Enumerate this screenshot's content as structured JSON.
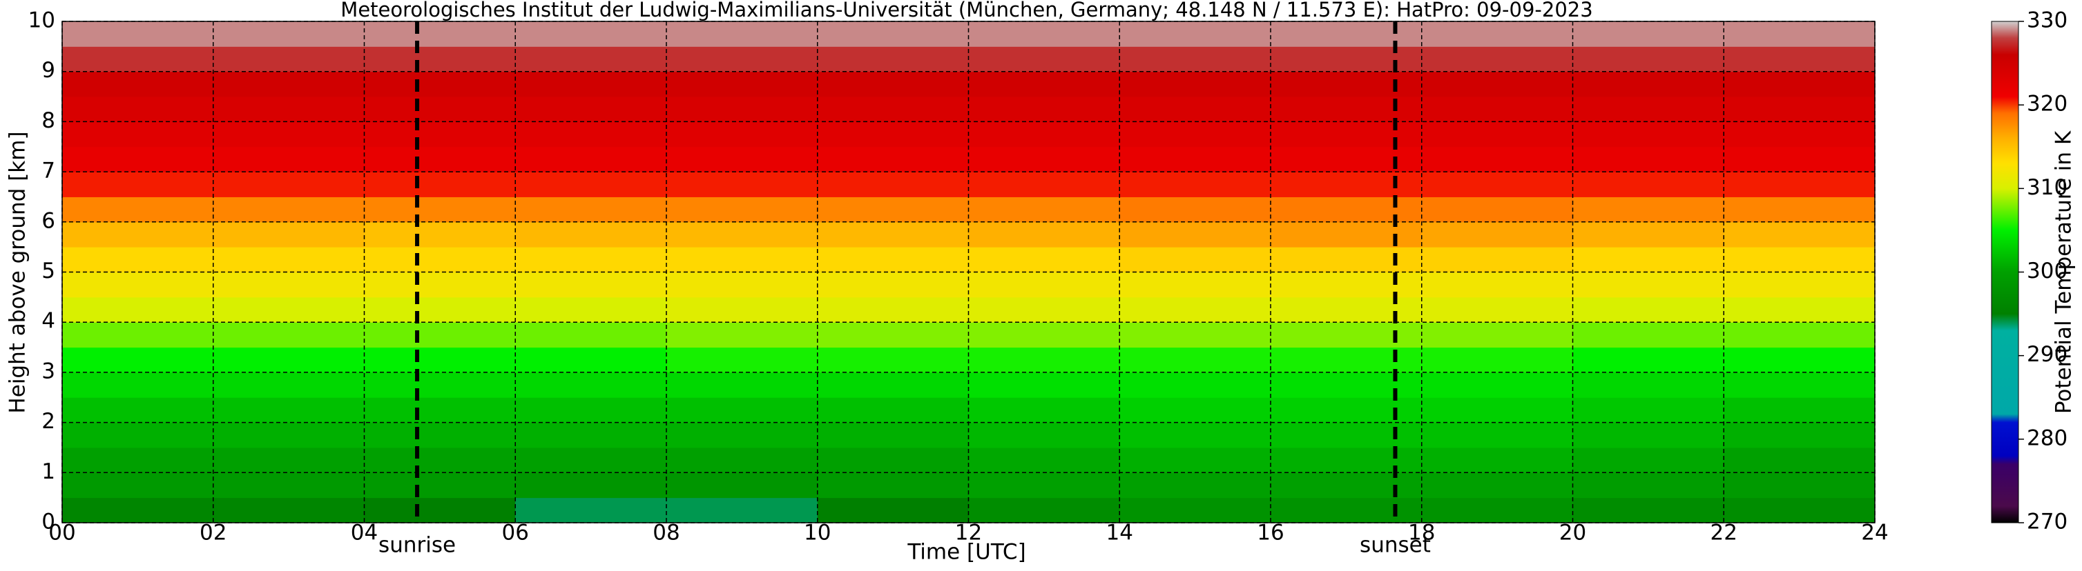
{
  "chart_data": {
    "type": "heatmap",
    "title": "Meteorologisches Institut der Ludwig-Maximilians-Universität (München, Germany; 48.148 N / 11.573 E):    HatPro: 09-09-2023",
    "x_label": "Time [UTC]",
    "y_label": "Height above ground [km]",
    "colorbar_label": "Potential Temperature in K",
    "x_edges": [
      0,
      2,
      4,
      6,
      8,
      10,
      12,
      14,
      16,
      18,
      20,
      22,
      24
    ],
    "y_edges": [
      0,
      0.5,
      1,
      1.5,
      2,
      2.5,
      3,
      3.5,
      4,
      4.5,
      5,
      5.5,
      6,
      6.5,
      7,
      7.5,
      8,
      8.5,
      9,
      9.5,
      10
    ],
    "z": [
      [
        296,
        296,
        295,
        294,
        294,
        295,
        297,
        298,
        298,
        298,
        297,
        297
      ],
      [
        299,
        299,
        299,
        298.5,
        298.5,
        299,
        300,
        300,
        300,
        300,
        299.5,
        299
      ],
      [
        300,
        300,
        300,
        300,
        300,
        300,
        300.5,
        301,
        301,
        301,
        300.5,
        300
      ],
      [
        301,
        301,
        301,
        301,
        301,
        301,
        301.5,
        302,
        302,
        302,
        301.5,
        301
      ],
      [
        302,
        302,
        302,
        302,
        302,
        302,
        302.5,
        303,
        303,
        303,
        302.5,
        302
      ],
      [
        303.5,
        303.5,
        303.5,
        303.5,
        303.5,
        303.5,
        304,
        304,
        304,
        304,
        303.5,
        303.5
      ],
      [
        305,
        305,
        305,
        305,
        305.5,
        305.5,
        305.5,
        305.5,
        305.5,
        305.5,
        305,
        305
      ],
      [
        307.5,
        307.5,
        307.5,
        307.5,
        308,
        308,
        308,
        308,
        308,
        308,
        307.5,
        307.5
      ],
      [
        310,
        310,
        310,
        310,
        310.5,
        310.5,
        310.5,
        310.5,
        310.5,
        310.5,
        310,
        310
      ],
      [
        312,
        312,
        312,
        312,
        312,
        312,
        312,
        312,
        312,
        312,
        312,
        312
      ],
      [
        313.5,
        313.5,
        313.5,
        313.5,
        313.5,
        313.5,
        313.5,
        314,
        314,
        314,
        313.5,
        313.5
      ],
      [
        315.5,
        315.5,
        315,
        315.5,
        315.5,
        315.5,
        316,
        316.5,
        317,
        316.5,
        316,
        315.5
      ],
      [
        318,
        318,
        318,
        318,
        318,
        318,
        318,
        318.5,
        318.5,
        318.5,
        318,
        318
      ],
      [
        320.5,
        320.5,
        320.5,
        320.5,
        320.5,
        320.5,
        320.5,
        320.5,
        320.5,
        320.5,
        320.5,
        320.5
      ],
      [
        322,
        322,
        322,
        322,
        322,
        322,
        322,
        322,
        322,
        322,
        322,
        322
      ],
      [
        323,
        323,
        323,
        323,
        323,
        323,
        323,
        323,
        323,
        323,
        323,
        323
      ],
      [
        324,
        324,
        324,
        324,
        324,
        324,
        324,
        324,
        324,
        324,
        324,
        324
      ],
      [
        325,
        325,
        325,
        325,
        325,
        325,
        325,
        325,
        325,
        325,
        325,
        325
      ],
      [
        327.5,
        327.5,
        327.5,
        327.5,
        327.5,
        327.5,
        327.5,
        327.5,
        327.5,
        327.5,
        327.5,
        327.5
      ],
      [
        329,
        329,
        329,
        329,
        329,
        329,
        329,
        329,
        329,
        329,
        329,
        329
      ]
    ],
    "colormap": [
      {
        "value": 270,
        "color": "#000000"
      },
      {
        "value": 272,
        "color": "#4b0a4b"
      },
      {
        "value": 277,
        "color": "#3a0068"
      },
      {
        "value": 278,
        "color": "#0000c0"
      },
      {
        "value": 282,
        "color": "#0010d0"
      },
      {
        "value": 283,
        "color": "#00a8a8"
      },
      {
        "value": 293,
        "color": "#00b0a0"
      },
      {
        "value": 295,
        "color": "#008000"
      },
      {
        "value": 300,
        "color": "#00a000"
      },
      {
        "value": 305,
        "color": "#00f000"
      },
      {
        "value": 310,
        "color": "#d8f000"
      },
      {
        "value": 313,
        "color": "#ffe000"
      },
      {
        "value": 316,
        "color": "#ffb000"
      },
      {
        "value": 319,
        "color": "#ff7000"
      },
      {
        "value": 321,
        "color": "#f00000"
      },
      {
        "value": 326,
        "color": "#c80000"
      },
      {
        "value": 328,
        "color": "#c04040"
      },
      {
        "value": 330,
        "color": "#d0d0d0"
      }
    ],
    "xlim": [
      0,
      24
    ],
    "ylim": [
      0,
      10
    ],
    "clim": [
      270,
      330
    ],
    "xticks": [
      {
        "value": 0,
        "label": "00"
      },
      {
        "value": 2,
        "label": "02"
      },
      {
        "value": 4,
        "label": "04"
      },
      {
        "value": 6,
        "label": "06"
      },
      {
        "value": 8,
        "label": "08"
      },
      10,
      12,
      14,
      16,
      18,
      20,
      22,
      24
    ],
    "yticks": [
      0,
      1,
      2,
      3,
      4,
      5,
      6,
      7,
      8,
      9,
      10
    ],
    "cticks": [
      270,
      280,
      290,
      300,
      310,
      320,
      330
    ],
    "grid": true,
    "annotations": [
      {
        "text": "sunrise",
        "x": 4.7
      },
      {
        "text": "sunset",
        "x": 17.65
      }
    ]
  }
}
